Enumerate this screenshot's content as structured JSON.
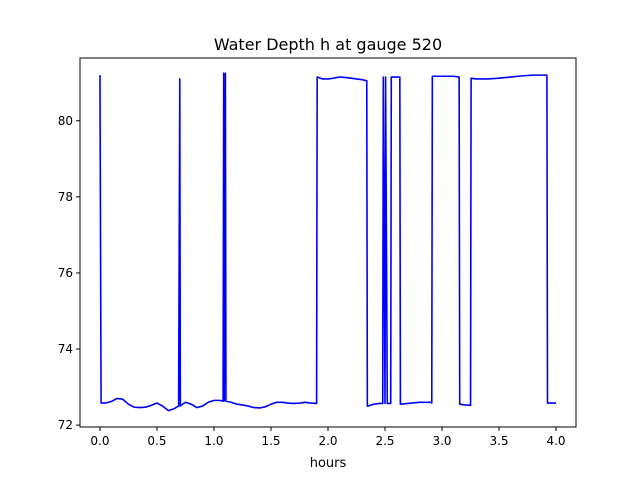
{
  "chart_data": {
    "type": "line",
    "title": "Water Depth h at gauge 520",
    "xlabel": "hours",
    "ylabel": "",
    "xlim": [
      -0.175,
      4.175
    ],
    "ylim": [
      71.95,
      81.65
    ],
    "x_ticks": [
      0.0,
      0.5,
      1.0,
      1.5,
      2.0,
      2.5,
      3.0,
      3.5,
      4.0
    ],
    "x_tick_labels": [
      "0.0",
      "0.5",
      "1.0",
      "1.5",
      "2.0",
      "2.5",
      "3.0",
      "3.5",
      "4.0"
    ],
    "y_ticks": [
      72,
      74,
      76,
      78,
      80
    ],
    "y_tick_labels": [
      "72",
      "74",
      "76",
      "78",
      "80"
    ],
    "grid": false,
    "legend": "none",
    "series": [
      {
        "color": "#0000ff",
        "x": [
          0.0,
          0.01,
          0.05,
          0.1,
          0.15,
          0.2,
          0.25,
          0.3,
          0.35,
          0.4,
          0.45,
          0.5,
          0.55,
          0.6,
          0.65,
          0.69,
          0.7,
          0.705,
          0.71,
          0.75,
          0.8,
          0.85,
          0.9,
          0.95,
          1.0,
          1.05,
          1.08,
          1.085,
          1.09,
          1.1,
          1.105,
          1.15,
          1.2,
          1.25,
          1.3,
          1.35,
          1.4,
          1.45,
          1.5,
          1.55,
          1.6,
          1.65,
          1.7,
          1.75,
          1.8,
          1.85,
          1.9,
          1.905,
          1.95,
          2.0,
          2.05,
          2.1,
          2.15,
          2.2,
          2.25,
          2.3,
          2.34,
          2.345,
          2.35,
          2.4,
          2.45,
          2.48,
          2.485,
          2.5,
          2.505,
          2.52,
          2.55,
          2.555,
          2.6,
          2.63,
          2.635,
          2.7,
          2.8,
          2.9,
          2.91,
          2.915,
          3.0,
          3.1,
          3.15,
          3.155,
          3.2,
          3.25,
          3.255,
          3.3,
          3.4,
          3.5,
          3.6,
          3.7,
          3.8,
          3.9,
          3.92,
          3.925,
          3.95,
          4.0
        ],
        "y": [
          81.2,
          72.58,
          72.58,
          72.62,
          72.7,
          72.68,
          72.55,
          72.47,
          72.46,
          72.47,
          72.52,
          72.58,
          72.5,
          72.38,
          72.43,
          72.5,
          81.1,
          72.5,
          72.52,
          72.6,
          72.55,
          72.46,
          72.5,
          72.6,
          72.65,
          72.65,
          72.63,
          81.25,
          72.63,
          81.25,
          72.63,
          72.6,
          72.55,
          72.53,
          72.5,
          72.46,
          72.45,
          72.48,
          72.55,
          72.6,
          72.6,
          72.58,
          72.57,
          72.58,
          72.6,
          72.58,
          72.57,
          81.15,
          81.1,
          81.1,
          81.12,
          81.15,
          81.14,
          81.12,
          81.1,
          81.08,
          81.05,
          72.5,
          72.5,
          72.55,
          72.57,
          72.57,
          81.15,
          72.57,
          81.15,
          72.57,
          72.57,
          81.15,
          81.15,
          81.15,
          72.55,
          72.57,
          72.6,
          72.6,
          72.58,
          81.17,
          81.17,
          81.17,
          81.15,
          72.55,
          72.53,
          72.52,
          81.12,
          81.1,
          81.1,
          81.12,
          81.15,
          81.18,
          81.2,
          81.2,
          81.2,
          72.58,
          72.58,
          72.58
        ]
      }
    ]
  }
}
